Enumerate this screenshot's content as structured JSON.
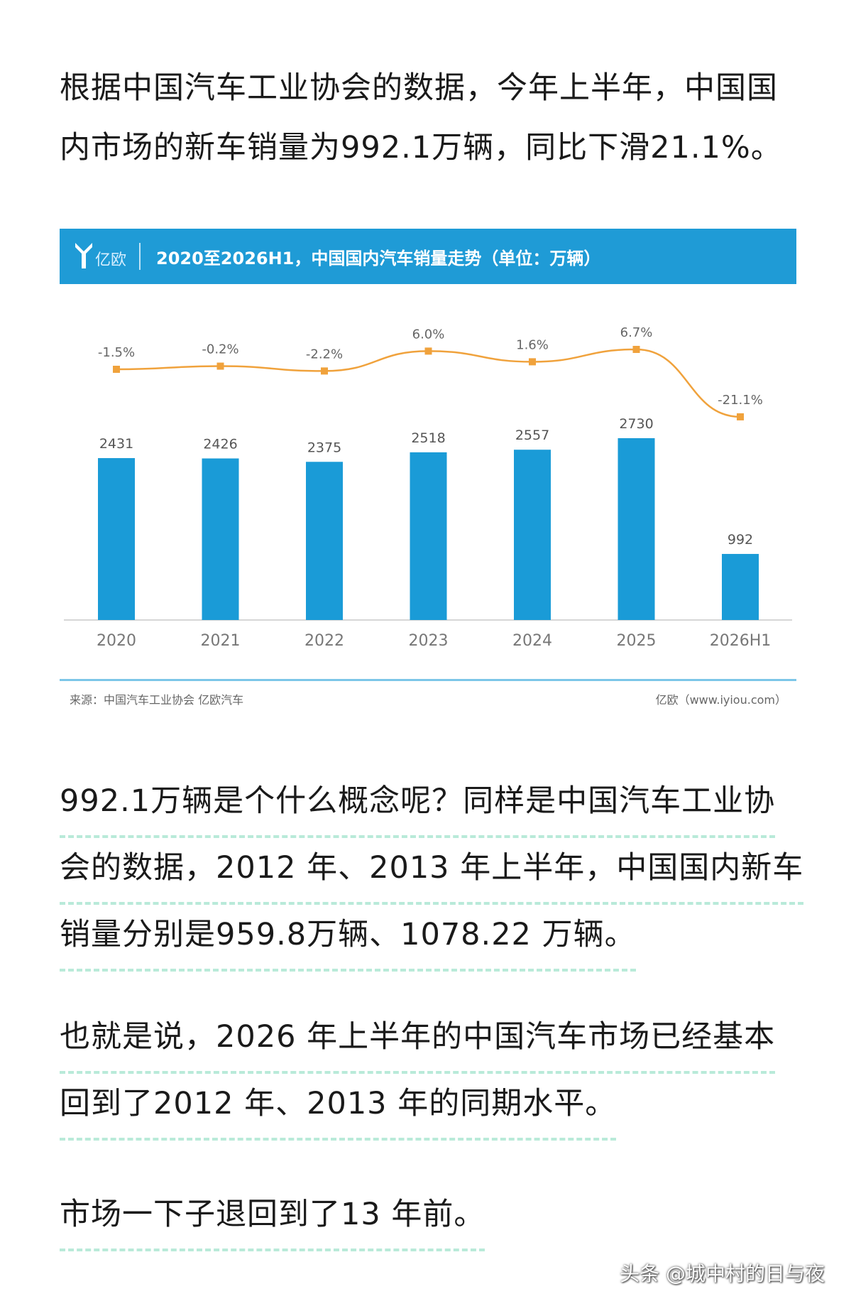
{
  "intro": {
    "lines": [
      "根据中国汽车工业协会的数据，今年上半年，中国国",
      "内市场的新车销量为992.1万辆，同比下滑21.1%。"
    ]
  },
  "chart_card": {
    "logo_text": "亿欧",
    "title": "2020至2026H1，中国国内汽车销量走势（单位：万辆）",
    "source": "来源：中国汽车工业协会 亿欧汽车",
    "site": "亿欧（www.iyiou.com）"
  },
  "chart_data": {
    "type": "bar",
    "categories": [
      "2020",
      "2021",
      "2022",
      "2023",
      "2024",
      "2025",
      "2026H1"
    ],
    "series": [
      {
        "values": [
          2431,
          2426,
          2375,
          2518,
          2557,
          2730,
          992
        ],
        "color": "#1a9bd7"
      },
      {
        "type": "line",
        "values": [
          -1.5,
          -0.2,
          -2.2,
          6.0,
          1.6,
          6.7,
          -21.1
        ],
        "labels": [
          "-1.5%",
          "-0.2%",
          "-2.2%",
          "6.0%",
          "1.6%",
          "6.7%",
          "-21.1%"
        ],
        "color": "#f0a23c"
      }
    ],
    "data_labels": [
      "2431",
      "2426",
      "2375",
      "2518",
      "2557",
      "2730",
      "992"
    ],
    "ylim": [
      0,
      2730
    ],
    "title": "2020至2026H1，中国国内汽车销量走势（单位：万辆）",
    "grid": false,
    "legend": "none"
  },
  "para2": {
    "lines": [
      "992.1万辆是个什么概念呢？同样是中国汽车工业协",
      "会的数据，2012 年、2013 年上半年，中国国内新车",
      "销量分别是959.8万辆、1078.22 万辆。"
    ]
  },
  "para3": {
    "lines": [
      "也就是说，2026 年上半年的中国汽车市场已经基本",
      "回到了2012 年、2013 年的同期水平。"
    ]
  },
  "para4": {
    "lines": [
      "市场一下子退回到了13 年前。"
    ]
  },
  "watermark": "头条 @城中村的日与夜"
}
